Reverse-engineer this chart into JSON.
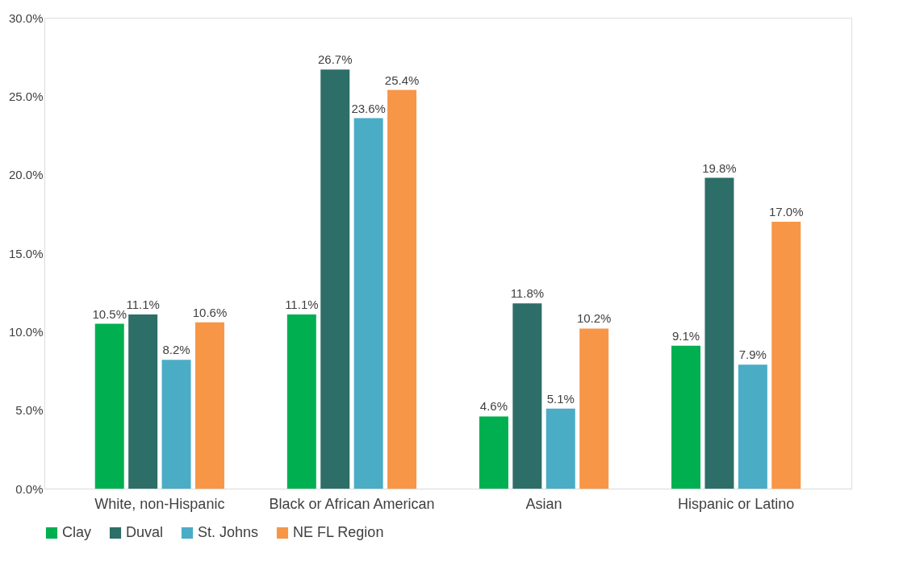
{
  "chart_data": {
    "type": "bar",
    "categories": [
      "White, non-Hispanic",
      "Black or African American",
      "Asian",
      "Hispanic or Latino"
    ],
    "series": [
      {
        "name": "Clay",
        "color": "#00b050",
        "values": [
          10.5,
          11.1,
          4.6,
          9.1
        ],
        "value_labels": [
          "10.5%",
          "11.1%",
          "4.6%",
          "9.1%"
        ]
      },
      {
        "name": "Duval",
        "color": "#2e6e68",
        "values": [
          11.1,
          26.7,
          11.8,
          19.8
        ],
        "value_labels": [
          "11.1%",
          "26.7%",
          "11.8%",
          "19.8%"
        ]
      },
      {
        "name": "St. Johns",
        "color": "#4bacc6",
        "values": [
          8.2,
          23.6,
          5.1,
          7.9
        ],
        "value_labels": [
          "8.2%",
          "23.6%",
          "5.1%",
          "7.9%"
        ]
      },
      {
        "name": "NE FL Region",
        "color": "#f79646",
        "values": [
          10.6,
          25.4,
          10.2,
          17.0
        ],
        "value_labels": [
          "10.6%",
          "25.4%",
          "10.2%",
          "17.0%"
        ]
      }
    ],
    "ylim": [
      0,
      30
    ],
    "yticks": [
      {
        "value": 0,
        "label": "0.0%"
      },
      {
        "value": 5,
        "label": "5.0%"
      },
      {
        "value": 10,
        "label": "10.0%"
      },
      {
        "value": 15,
        "label": "15.0%"
      },
      {
        "value": 20,
        "label": "20.0%"
      },
      {
        "value": 25,
        "label": "25.0%"
      },
      {
        "value": 30,
        "label": "30.0%"
      }
    ],
    "grid": false,
    "legend": "bottom"
  }
}
